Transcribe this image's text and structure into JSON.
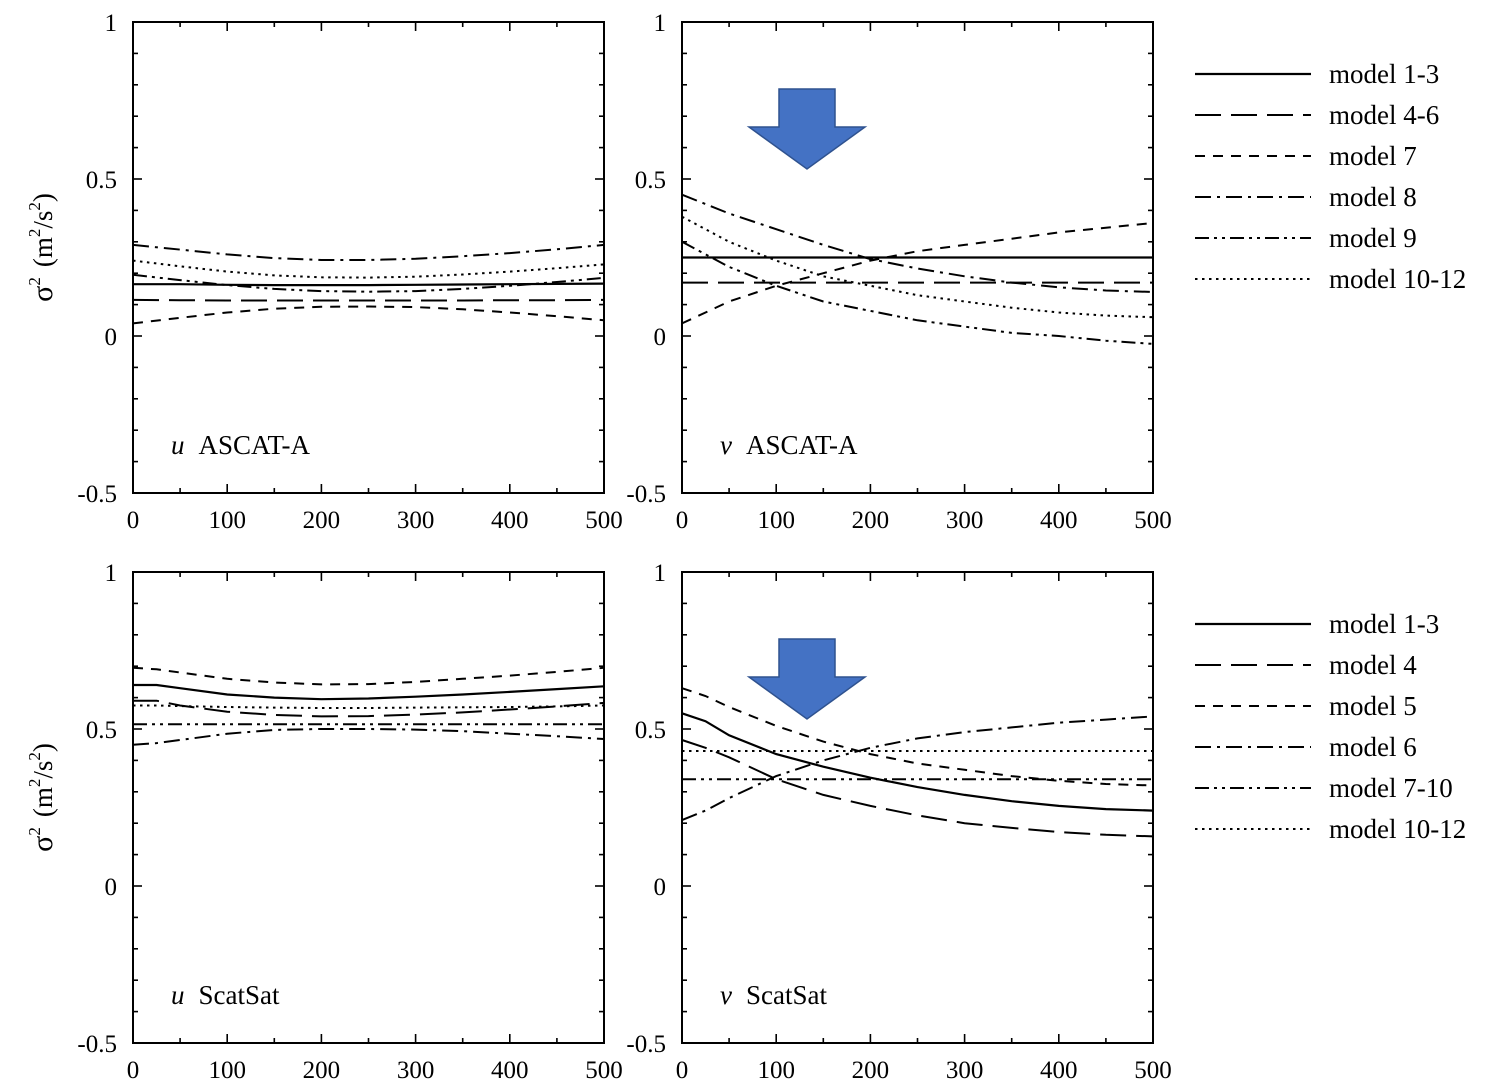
{
  "figure": {
    "ylabel_sigma": "σ",
    "ylabel_sup": "2",
    "ylabel_unit_open": "(m",
    "ylabel_unit_mid": "/s",
    "ylabel_unit_close": ")",
    "accent_color": "#4472C4"
  },
  "legends": [
    {
      "entries": [
        {
          "label": "model 1-3",
          "style": "solid"
        },
        {
          "label": "model 4-6",
          "style": "long-dash"
        },
        {
          "label": "model 7",
          "style": "dash"
        },
        {
          "label": "model 8",
          "style": "dash-dot"
        },
        {
          "label": "model 9",
          "style": "dash-dot-dot"
        },
        {
          "label": "model 10-12",
          "style": "dot"
        }
      ]
    },
    {
      "entries": [
        {
          "label": "model 1-3",
          "style": "solid"
        },
        {
          "label": "model 4",
          "style": "long-dash"
        },
        {
          "label": "model 5",
          "style": "dash"
        },
        {
          "label": "model 6",
          "style": "dash-dot"
        },
        {
          "label": "model 7-10",
          "style": "dash-dot-dot"
        },
        {
          "label": "model 10-12",
          "style": "dot"
        }
      ]
    }
  ],
  "chart_data": [
    {
      "type": "line",
      "panel_var": "u",
      "panel_name": "ASCAT-A",
      "xlim": [
        0,
        500
      ],
      "ylim": [
        -0.5,
        1
      ],
      "xticks": [
        "0",
        "100",
        "200",
        "300",
        "400",
        "500"
      ],
      "yticks": [
        "-0.5",
        "0",
        "0.5",
        "1"
      ],
      "x": [
        0,
        50,
        100,
        150,
        200,
        250,
        300,
        350,
        400,
        450,
        500
      ],
      "series": [
        {
          "name": "model 1-3",
          "style": "solid",
          "values": [
            0.165,
            0.165,
            0.163,
            0.162,
            0.162,
            0.162,
            0.163,
            0.164,
            0.165,
            0.166,
            0.167
          ]
        },
        {
          "name": "model 4-6",
          "style": "long-dash",
          "values": [
            0.115,
            0.114,
            0.113,
            0.113,
            0.113,
            0.113,
            0.113,
            0.113,
            0.114,
            0.114,
            0.115
          ]
        },
        {
          "name": "model 7",
          "style": "dash",
          "values": [
            0.04,
            0.058,
            0.075,
            0.087,
            0.093,
            0.094,
            0.092,
            0.085,
            0.075,
            0.063,
            0.05
          ]
        },
        {
          "name": "model 8",
          "style": "dash-dot",
          "values": [
            0.29,
            0.275,
            0.26,
            0.248,
            0.242,
            0.242,
            0.246,
            0.254,
            0.264,
            0.276,
            0.29
          ]
        },
        {
          "name": "model 9",
          "style": "dash-dot-dot",
          "values": [
            0.195,
            0.178,
            0.162,
            0.15,
            0.143,
            0.141,
            0.143,
            0.15,
            0.16,
            0.172,
            0.185
          ]
        },
        {
          "name": "model 10-12",
          "style": "dot",
          "values": [
            0.24,
            0.222,
            0.205,
            0.193,
            0.187,
            0.186,
            0.189,
            0.196,
            0.205,
            0.216,
            0.228
          ]
        }
      ]
    },
    {
      "type": "line",
      "panel_var": "v",
      "panel_name": "ASCAT-A",
      "xlim": [
        0,
        500
      ],
      "ylim": [
        -0.5,
        1
      ],
      "xticks": [
        "0",
        "100",
        "200",
        "300",
        "400",
        "500"
      ],
      "yticks": [
        "-0.5",
        "0",
        "0.5",
        "1"
      ],
      "x": [
        0,
        50,
        100,
        150,
        200,
        250,
        300,
        350,
        400,
        450,
        500
      ],
      "series": [
        {
          "name": "model 1-3",
          "style": "solid",
          "values": [
            0.25,
            0.25,
            0.25,
            0.25,
            0.25,
            0.25,
            0.25,
            0.25,
            0.25,
            0.25,
            0.25
          ]
        },
        {
          "name": "model 4-6",
          "style": "long-dash",
          "values": [
            0.17,
            0.17,
            0.17,
            0.17,
            0.17,
            0.17,
            0.17,
            0.17,
            0.17,
            0.17,
            0.17
          ]
        },
        {
          "name": "model 7",
          "style": "dash",
          "values": [
            0.04,
            0.11,
            0.16,
            0.2,
            0.24,
            0.27,
            0.29,
            0.31,
            0.33,
            0.345,
            0.36
          ]
        },
        {
          "name": "model 8",
          "style": "dash-dot",
          "values": [
            0.45,
            0.39,
            0.34,
            0.29,
            0.245,
            0.215,
            0.19,
            0.17,
            0.155,
            0.145,
            0.14
          ]
        },
        {
          "name": "model 9",
          "style": "dash-dot-dot",
          "values": [
            0.3,
            0.22,
            0.16,
            0.11,
            0.08,
            0.05,
            0.03,
            0.01,
            0.0,
            -0.015,
            -0.025
          ]
        },
        {
          "name": "model 10-12",
          "style": "dot",
          "values": [
            0.38,
            0.3,
            0.24,
            0.19,
            0.16,
            0.13,
            0.11,
            0.09,
            0.075,
            0.065,
            0.06
          ]
        }
      ]
    },
    {
      "type": "line",
      "panel_var": "u",
      "panel_name": "ScatSat",
      "xlim": [
        0,
        500
      ],
      "ylim": [
        -0.5,
        1
      ],
      "xticks": [
        "0",
        "100",
        "200",
        "300",
        "400",
        "500"
      ],
      "yticks": [
        "-0.5",
        "0",
        "0.5",
        "1"
      ],
      "x": [
        0,
        25,
        50,
        100,
        150,
        200,
        250,
        300,
        350,
        400,
        450,
        500
      ],
      "series": [
        {
          "name": "model 1-3",
          "style": "solid",
          "values": [
            0.64,
            0.64,
            0.63,
            0.61,
            0.6,
            0.595,
            0.597,
            0.603,
            0.61,
            0.618,
            0.627,
            0.636
          ]
        },
        {
          "name": "model 4",
          "style": "long-dash",
          "values": [
            0.59,
            0.59,
            0.575,
            0.555,
            0.545,
            0.54,
            0.541,
            0.546,
            0.553,
            0.562,
            0.572,
            0.583
          ]
        },
        {
          "name": "model 5",
          "style": "dash",
          "values": [
            0.695,
            0.69,
            0.68,
            0.66,
            0.648,
            0.642,
            0.643,
            0.65,
            0.66,
            0.67,
            0.682,
            0.695
          ]
        },
        {
          "name": "model 6",
          "style": "dash-dot",
          "values": [
            0.45,
            0.455,
            0.465,
            0.485,
            0.497,
            0.5,
            0.5,
            0.498,
            0.493,
            0.485,
            0.477,
            0.468
          ]
        },
        {
          "name": "model 7-10",
          "style": "dash-dot-dot",
          "values": [
            0.515,
            0.515,
            0.515,
            0.515,
            0.515,
            0.515,
            0.515,
            0.515,
            0.515,
            0.515,
            0.515,
            0.515
          ]
        },
        {
          "name": "model 10-12",
          "style": "dot",
          "values": [
            0.575,
            0.575,
            0.573,
            0.57,
            0.568,
            0.567,
            0.567,
            0.568,
            0.569,
            0.57,
            0.572,
            0.575
          ]
        }
      ]
    },
    {
      "type": "line",
      "panel_var": "v",
      "panel_name": "ScatSat",
      "xlim": [
        0,
        500
      ],
      "ylim": [
        -0.5,
        1
      ],
      "xticks": [
        "0",
        "100",
        "200",
        "300",
        "400",
        "500"
      ],
      "yticks": [
        "-0.5",
        "0",
        "0.5",
        "1"
      ],
      "x": [
        0,
        25,
        50,
        100,
        150,
        200,
        250,
        300,
        350,
        400,
        450,
        500
      ],
      "series": [
        {
          "name": "model 1-3",
          "style": "solid",
          "values": [
            0.55,
            0.525,
            0.48,
            0.42,
            0.38,
            0.345,
            0.315,
            0.29,
            0.27,
            0.255,
            0.245,
            0.24
          ]
        },
        {
          "name": "model 4",
          "style": "long-dash",
          "values": [
            0.465,
            0.44,
            0.41,
            0.34,
            0.29,
            0.255,
            0.225,
            0.2,
            0.185,
            0.172,
            0.163,
            0.158
          ]
        },
        {
          "name": "model 5",
          "style": "dash",
          "values": [
            0.63,
            0.605,
            0.57,
            0.51,
            0.46,
            0.42,
            0.39,
            0.37,
            0.35,
            0.335,
            0.325,
            0.32
          ]
        },
        {
          "name": "model 6",
          "style": "dash-dot",
          "values": [
            0.21,
            0.24,
            0.28,
            0.35,
            0.4,
            0.44,
            0.47,
            0.49,
            0.505,
            0.52,
            0.53,
            0.54
          ]
        },
        {
          "name": "model 7-10",
          "style": "dash-dot-dot",
          "values": [
            0.34,
            0.34,
            0.34,
            0.34,
            0.34,
            0.34,
            0.34,
            0.34,
            0.34,
            0.34,
            0.34,
            0.34
          ]
        },
        {
          "name": "model 10-12",
          "style": "dot",
          "values": [
            0.43,
            0.43,
            0.43,
            0.43,
            0.43,
            0.43,
            0.43,
            0.43,
            0.43,
            0.43,
            0.43,
            0.43
          ]
        }
      ]
    }
  ]
}
